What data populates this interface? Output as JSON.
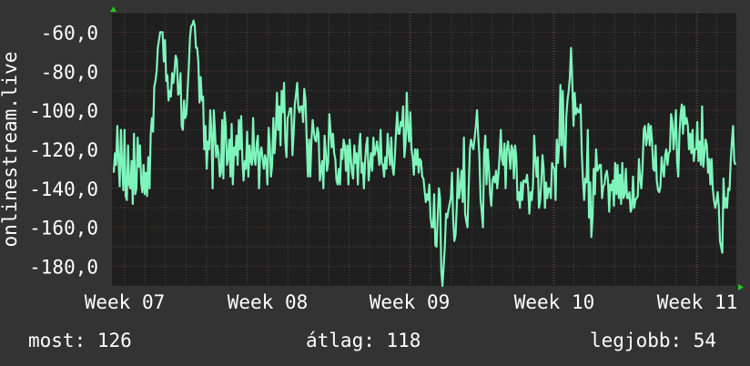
{
  "chart_data": {
    "type": "line",
    "ylabel": "onlinestream.live",
    "y_ticks": [
      "-60,0",
      "-80,0",
      "-100,0",
      "-120,0",
      "-140,0",
      "-160,0",
      "-180,0"
    ],
    "y_tick_values": [
      -60,
      -80,
      -100,
      -120,
      -140,
      -160,
      -180
    ],
    "x_ticks": [
      "Week 07",
      "Week 08",
      "Week 09",
      "Week 10",
      "Week 11"
    ],
    "ylim": [
      -190,
      -50
    ],
    "grid": true,
    "series": [
      {
        "values": [
          -132,
          -122,
          -128,
          -108,
          -125,
          -139,
          -110,
          -128,
          -141,
          -110,
          -144,
          -146,
          -118,
          -138,
          -140,
          -126,
          -148,
          -112,
          -143,
          -140,
          -114,
          -129,
          -118,
          -137,
          -142,
          -128,
          -143,
          -132,
          -144,
          -124,
          -140,
          -112,
          -104,
          -111,
          -88,
          -85,
          -80,
          -68,
          -64,
          -60,
          -60,
          -60,
          -75,
          -64,
          -85,
          -82,
          -95,
          -90,
          -93,
          -81,
          -86,
          -80,
          -72,
          -74,
          -92,
          -91,
          -81,
          -108,
          -110,
          -95,
          -104,
          -102,
          -90,
          -78,
          -63,
          -57,
          -56,
          -54,
          -57,
          -68,
          -68,
          -75,
          -96,
          -83,
          -95,
          -93,
          -120,
          -108,
          -130,
          -116,
          -120,
          -100,
          -112,
          -140,
          -100,
          -111,
          -124,
          -118,
          -122,
          -134,
          -132,
          -105,
          -135,
          -101,
          -108,
          -128,
          -124,
          -115,
          -134,
          -107,
          -138,
          -119,
          -123,
          -113,
          -128,
          -105,
          -120,
          -103,
          -125,
          -136,
          -126,
          -130,
          -111,
          -134,
          -118,
          -126,
          -128,
          -104,
          -125,
          -128,
          -117,
          -113,
          -140,
          -122,
          -119,
          -125,
          -130,
          -123,
          -126,
          -138,
          -109,
          -118,
          -134,
          -128,
          -104,
          -122,
          -112,
          -91,
          -110,
          -98,
          -118,
          -90,
          -101,
          -86,
          -115,
          -124,
          -104,
          -102,
          -99,
          -99,
          -123,
          -112,
          -97,
          -92,
          -86,
          -99,
          -101,
          -98,
          -98,
          -106,
          -89,
          -95,
          -116,
          -134,
          -115,
          -134,
          -115,
          -105,
          -111,
          -115,
          -116,
          -109,
          -112,
          -136,
          -130,
          -126,
          -140,
          -113,
          -121,
          -131,
          -127,
          -102,
          -110,
          -119,
          -112,
          -122,
          -125,
          -136,
          -138,
          -130,
          -138,
          -120,
          -125,
          -115,
          -118,
          -131,
          -118,
          -138,
          -115,
          -124,
          -132,
          -135,
          -118,
          -127,
          -122,
          -138,
          -119,
          -112,
          -132,
          -127,
          -140,
          -126,
          -118,
          -114,
          -136,
          -129,
          -122,
          -131,
          -114,
          -123,
          -120,
          -116,
          -122,
          -128,
          -110,
          -127,
          -128,
          -134,
          -124,
          -130,
          -112,
          -121,
          -128,
          -114,
          -129,
          -133,
          -124,
          -111,
          -101,
          -112,
          -112,
          -106,
          -108,
          -98,
          -124,
          -117,
          -91,
          -110,
          -116,
          -101,
          -120,
          -124,
          -133,
          -120,
          -128,
          -120,
          -132,
          -125,
          -126,
          -134,
          -135,
          -141,
          -147,
          -143,
          -146,
          -138,
          -155,
          -160,
          -160,
          -143,
          -169,
          -170,
          -155,
          -140,
          -145,
          -182,
          -190,
          -180,
          -170,
          -153,
          -155,
          -151,
          -148,
          -145,
          -132,
          -156,
          -167,
          -164,
          -150,
          -130,
          -145,
          -139,
          -131,
          -147,
          -114,
          -153,
          -157,
          -160,
          -140,
          -120,
          -115,
          -118,
          -120,
          -114,
          -108,
          -100,
          -113,
          -124,
          -146,
          -152,
          -160,
          -122,
          -113,
          -138,
          -120,
          -130,
          -143,
          -149,
          -136,
          -134,
          -137,
          -131,
          -140,
          -133,
          -123,
          -110,
          -125,
          -128,
          -117,
          -140,
          -120,
          -116,
          -122,
          -130,
          -118,
          -120,
          -135,
          -118,
          -124,
          -146,
          -142,
          -150,
          -137,
          -146,
          -136,
          -136,
          -137,
          -133,
          -140,
          -153,
          -142,
          -146,
          -138,
          -113,
          -125,
          -134,
          -124,
          -150,
          -147,
          -137,
          -123,
          -130,
          -150,
          -137,
          -145,
          -140,
          -140,
          -145,
          -127,
          -129,
          -130,
          -146,
          -115,
          -127,
          -117,
          -87,
          -118,
          -90,
          -119,
          -129,
          -103,
          -95,
          -90,
          -83,
          -68,
          -85,
          -108,
          -91,
          -102,
          -99,
          -101,
          -101,
          -97,
          -122,
          -136,
          -146,
          -135,
          -137,
          -110,
          -155,
          -137,
          -165,
          -155,
          -130,
          -143,
          -120,
          -131,
          -130,
          -128,
          -128,
          -145,
          -139,
          -138,
          -133,
          -131,
          -136,
          -152,
          -138,
          -141,
          -136,
          -149,
          -127,
          -143,
          -128,
          -145,
          -133,
          -148,
          -127,
          -145,
          -143,
          -130,
          -145,
          -145,
          -142,
          -152,
          -150,
          -134,
          -150,
          -146,
          -145,
          -144,
          -125,
          -135,
          -140,
          -130,
          -110,
          -108,
          -118,
          -114,
          -107,
          -118,
          -108,
          -116,
          -130,
          -131,
          -118,
          -136,
          -141,
          -142,
          -139,
          -124,
          -130,
          -134,
          -123,
          -120,
          -128,
          -122,
          -121,
          -102,
          -106,
          -120,
          -112,
          -100,
          -126,
          -134,
          -112,
          -102,
          -97,
          -112,
          -98,
          -107,
          -104,
          -108,
          -120,
          -112,
          -122,
          -110,
          -126,
          -120,
          -120,
          -106,
          -126,
          -116,
          -128,
          -98,
          -129,
          -122,
          -115,
          -118,
          -132,
          -125,
          -138,
          -125,
          -140,
          -146,
          -150,
          -147,
          -142,
          -149,
          -167,
          -170,
          -173,
          -135,
          -150,
          -145,
          -150,
          -140,
          -141,
          -126,
          -116,
          -108,
          -126,
          -128
        ],
        "color": "#7ff5bb"
      }
    ]
  },
  "stats": {
    "current": "most: 126",
    "average": "átlag: 118",
    "max": "legjobb: 54"
  },
  "colors": {
    "background": "#333333",
    "plot_background": "#1f1f1f",
    "grid_major": "#6b3a3a",
    "grid_minor": "#4a4a4a",
    "line": "#7ff5bb",
    "axis_arrow": "#22cc22",
    "text": "#ffffff"
  }
}
